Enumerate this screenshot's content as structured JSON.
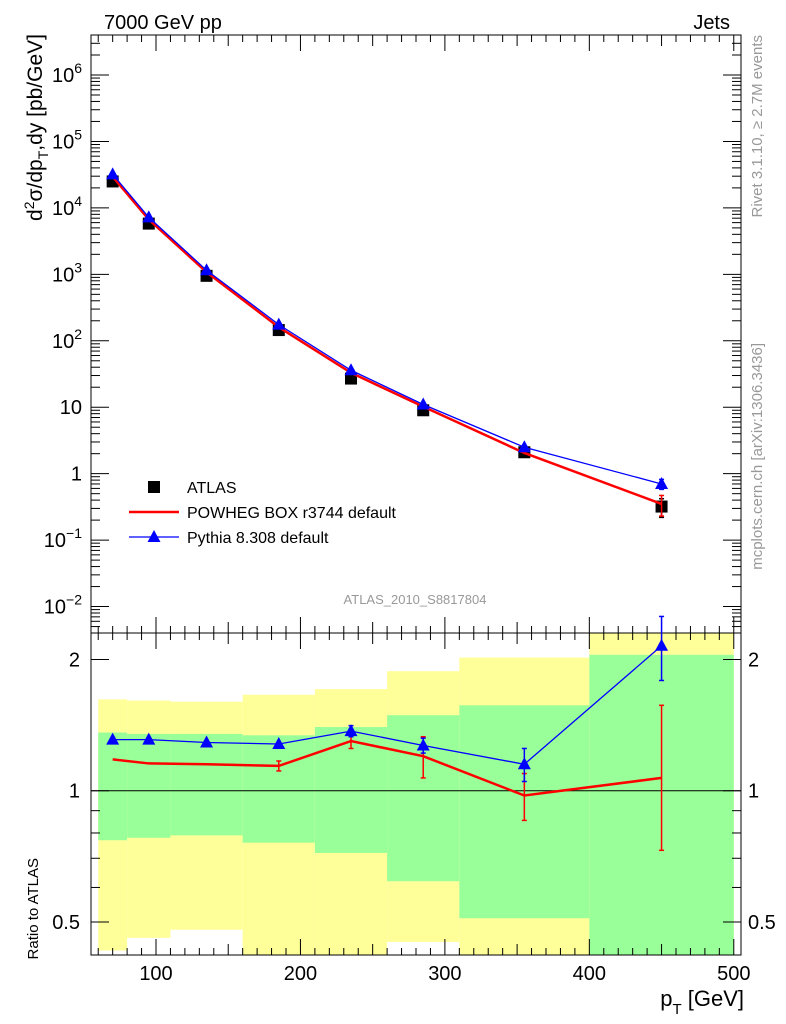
{
  "header": {
    "left": "7000 GeV pp",
    "right": "Jets",
    "analysis_id": "ATLAS_2010_S8817804"
  },
  "side": {
    "rivet": "Rivet 3.1.10, ≥ 2.7M events",
    "mcplots": "mcplots.cern.ch [arXiv:1306.3436]"
  },
  "colors": {
    "atlas": "#000000",
    "powheg": "#ff0000",
    "pythia": "#0000ff",
    "band_outer": "#ffff99",
    "band_inner": "#99ff99"
  },
  "chart_data": [
    {
      "type": "scatter",
      "role": "main",
      "ylabel": "d²σ/dp_T,dy [pb/GeV]",
      "yscale": "log",
      "xlim": [
        55,
        505
      ],
      "ylim": [
        0.004,
        4000000
      ],
      "ytick_labels": [
        {
          "v": 0.01,
          "base": "10",
          "exp": "−2"
        },
        {
          "v": 0.1,
          "base": "10",
          "exp": "−1"
        },
        {
          "v": 1,
          "base": "1",
          "exp": ""
        },
        {
          "v": 10,
          "base": "10",
          "exp": ""
        },
        {
          "v": 100,
          "base": "10",
          "exp": "2"
        },
        {
          "v": 1000,
          "base": "10",
          "exp": "3"
        },
        {
          "v": 10000,
          "base": "10",
          "exp": "4"
        },
        {
          "v": 100000,
          "base": "10",
          "exp": "5"
        },
        {
          "v": 1000000,
          "base": "10",
          "exp": "6"
        }
      ],
      "legend": {
        "placement": "bottom-left",
        "entries": [
          "ATLAS",
          "POWHEG BOX r3744 default",
          "Pythia 8.308 default"
        ]
      },
      "series": [
        {
          "name": "ATLAS",
          "style": "square",
          "x": [
            70,
            95,
            135,
            185,
            235,
            285,
            355,
            450
          ],
          "y": [
            25000,
            5800,
            950,
            145,
            27,
            9,
            2.1,
            0.32
          ],
          "err_lo": [
            0,
            0,
            0,
            0,
            0,
            0,
            0,
            0.1
          ],
          "err_hi": [
            0,
            0,
            0,
            0,
            0,
            0,
            0,
            0.1
          ]
        },
        {
          "name": "POWHEG BOX r3744 default",
          "style": "line",
          "x": [
            70,
            95,
            135,
            185,
            235,
            285,
            355,
            450
          ],
          "y": [
            29500,
            6700,
            1080,
            160,
            33,
            10.2,
            2.05,
            0.35
          ],
          "err_lo": [
            0,
            0,
            0,
            0,
            0,
            0,
            0,
            0.12
          ],
          "err_hi": [
            0,
            0,
            0,
            0,
            0,
            0,
            0,
            0.12
          ]
        },
        {
          "name": "Pythia 8.308 default",
          "style": "triangle",
          "x": [
            70,
            95,
            135,
            185,
            235,
            285,
            355,
            450
          ],
          "y": [
            32000,
            7200,
            1150,
            175,
            36,
            11,
            2.5,
            0.7
          ],
          "err_lo": [
            0,
            0,
            0,
            0,
            0,
            0,
            0,
            0.12
          ],
          "err_hi": [
            0,
            0,
            0,
            0,
            0,
            0,
            0,
            0.12
          ]
        }
      ]
    },
    {
      "type": "scatter",
      "role": "ratio",
      "ylabel": "Ratio to ATLAS",
      "yscale": "log",
      "xlabel": "p_T [GeV]",
      "xlim": [
        55,
        505
      ],
      "ylim": [
        0.42,
        2.3
      ],
      "xticks": [
        100,
        200,
        300,
        400,
        500
      ],
      "yticks": [
        0.5,
        1,
        2
      ],
      "ytick_labels": [
        "0.5",
        "1",
        "2"
      ],
      "bands": [
        {
          "x0": 60,
          "x1": 80,
          "outer_lo": 0.43,
          "outer_hi": 1.62,
          "inner_lo": 0.77,
          "inner_hi": 1.36
        },
        {
          "x0": 80,
          "x1": 110,
          "outer_lo": 0.46,
          "outer_hi": 1.61,
          "inner_lo": 0.78,
          "inner_hi": 1.35
        },
        {
          "x0": 110,
          "x1": 160,
          "outer_lo": 0.48,
          "outer_hi": 1.6,
          "inner_lo": 0.79,
          "inner_hi": 1.35
        },
        {
          "x0": 160,
          "x1": 210,
          "outer_lo": 0.38,
          "outer_hi": 1.66,
          "inner_lo": 0.76,
          "inner_hi": 1.34
        },
        {
          "x0": 210,
          "x1": 260,
          "outer_lo": 0.39,
          "outer_hi": 1.71,
          "inner_lo": 0.72,
          "inner_hi": 1.4
        },
        {
          "x0": 260,
          "x1": 310,
          "outer_lo": 0.45,
          "outer_hi": 1.88,
          "inner_lo": 0.62,
          "inner_hi": 1.49
        },
        {
          "x0": 310,
          "x1": 400,
          "outer_lo": 0.35,
          "outer_hi": 2.02,
          "inner_lo": 0.51,
          "inner_hi": 1.57
        },
        {
          "x0": 400,
          "x1": 500,
          "outer_lo": 0.35,
          "outer_hi": 2.35,
          "inner_lo": 0.35,
          "inner_hi": 2.05
        }
      ],
      "series": [
        {
          "name": "POWHEG BOX r3744 default",
          "style": "line",
          "x": [
            70,
            95,
            135,
            185,
            235,
            285,
            355,
            450
          ],
          "y": [
            1.18,
            1.155,
            1.15,
            1.14,
            1.3,
            1.2,
            0.975,
            1.07
          ],
          "err_lo": [
            0,
            0,
            0,
            0.03,
            0.05,
            0.13,
            0.12,
            0.34
          ],
          "err_hi": [
            0,
            0,
            0,
            0.03,
            0.05,
            0.13,
            0.12,
            0.5
          ]
        },
        {
          "name": "Pythia 8.308 default",
          "style": "triangle",
          "x": [
            70,
            95,
            135,
            185,
            235,
            285,
            355,
            450
          ],
          "y": [
            1.31,
            1.31,
            1.29,
            1.28,
            1.37,
            1.27,
            1.15,
            2.15
          ],
          "err_lo": [
            0,
            0,
            0,
            0,
            0.04,
            0.05,
            0.1,
            0.36
          ],
          "err_hi": [
            0,
            0,
            0,
            0,
            0.04,
            0.05,
            0.1,
            0.36
          ]
        }
      ]
    }
  ]
}
